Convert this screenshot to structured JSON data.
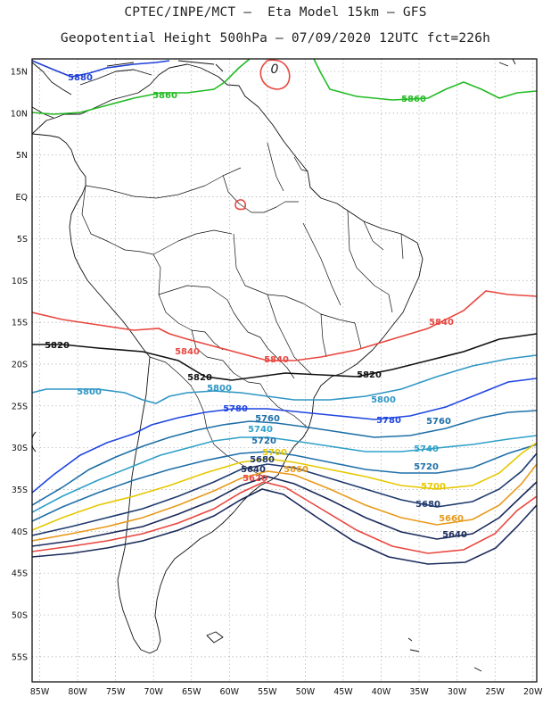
{
  "header": {
    "line1": "CPTEC/INPE/MCT –  Eta Model 15km – GFS",
    "line2": "Geopotential Height 500hPa – 07/09/2020 12UTC fct=226h"
  },
  "axes": {
    "lat_ticks": [
      "15N",
      "10N",
      "5N",
      "EQ",
      "5S",
      "10S",
      "15S",
      "20S",
      "25S",
      "30S",
      "35S",
      "40S",
      "45S",
      "50S",
      "55S"
    ],
    "lon_ticks": [
      "85W",
      "80W",
      "75W",
      "70W",
      "65W",
      "60W",
      "55W",
      "50W",
      "45W",
      "40W",
      "35W",
      "30W",
      "25W",
      "20W"
    ]
  },
  "map": {
    "lon_range": [
      -86,
      -19.5
    ],
    "lat_range": [
      -58,
      16.5
    ],
    "grid": "dotted every 5 degrees"
  },
  "contour_labels": [
    {
      "text": "5880",
      "color": "#1f3fd6"
    },
    {
      "text": "5860",
      "color": "#22bb22"
    },
    {
      "text": "5860",
      "color": "#22bb22"
    },
    {
      "text": "0",
      "color": "#222222"
    },
    {
      "text": "5840",
      "color": "#e8473f"
    },
    {
      "text": "5840",
      "color": "#e8473f"
    },
    {
      "text": "5840",
      "color": "#e8473f"
    },
    {
      "text": "5820",
      "color": "#111111"
    },
    {
      "text": "5820",
      "color": "#111111"
    },
    {
      "text": "5820",
      "color": "#111111"
    },
    {
      "text": "5800",
      "color": "#2f96c4"
    },
    {
      "text": "5800",
      "color": "#2f96c4"
    },
    {
      "text": "5800",
      "color": "#2f96c4"
    },
    {
      "text": "5780",
      "color": "#1e45e0"
    },
    {
      "text": "5780",
      "color": "#1e45e0"
    },
    {
      "text": "5760",
      "color": "#1e6fa6"
    },
    {
      "text": "5760",
      "color": "#1e6fa6"
    },
    {
      "text": "5740",
      "color": "#2fa0c8"
    },
    {
      "text": "5740",
      "color": "#2fa0c8"
    },
    {
      "text": "5720",
      "color": "#1f6fa8"
    },
    {
      "text": "5720",
      "color": "#1f6fa8"
    },
    {
      "text": "5700",
      "color": "#e6c800"
    },
    {
      "text": "5700",
      "color": "#e6c800"
    },
    {
      "text": "5680",
      "color": "#1f3a6e"
    },
    {
      "text": "5680",
      "color": "#1f3a6e"
    },
    {
      "text": "5660",
      "color": "#e89a1a"
    },
    {
      "text": "5660",
      "color": "#e89a1a"
    },
    {
      "text": "5640",
      "color": "#1a2a5a"
    },
    {
      "text": "5640",
      "color": "#1a2a5a"
    },
    {
      "text": "5620",
      "color": "#e8473f"
    }
  ]
}
